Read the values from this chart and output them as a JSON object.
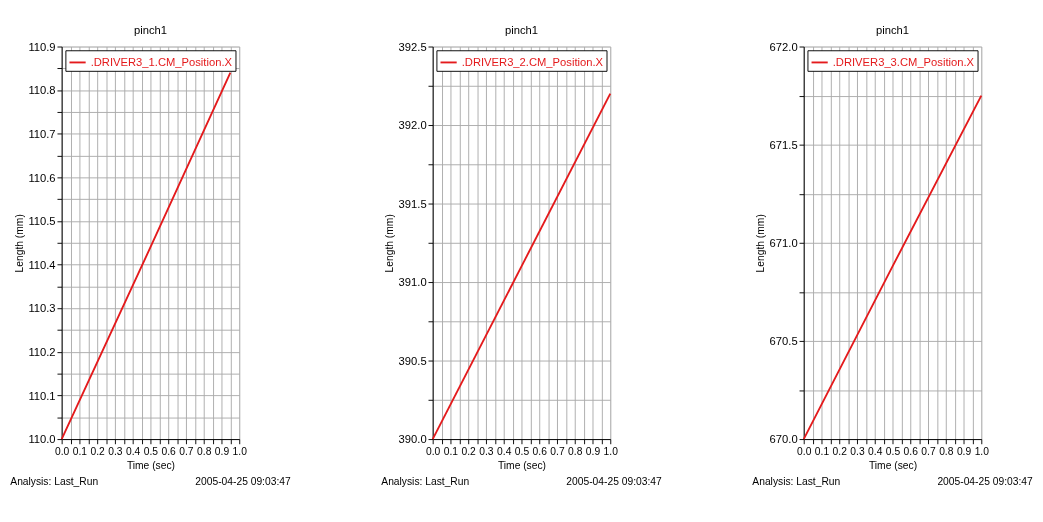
{
  "chart_data": [
    {
      "type": "line",
      "title": "pinch1",
      "xlabel": "Time (sec)",
      "ylabel": "Length (mm)",
      "annotations": [
        "Analysis:  Last_Run",
        "2005-04-25 09:03:47"
      ],
      "series": [
        {
          "name": ".DRIVER3_1.CM_Position.X",
          "color": "#e41a1c",
          "x": [
            0.0,
            0.5,
            0.95
          ],
          "values": [
            110.0,
            110.44,
            110.84
          ]
        }
      ],
      "xlim": [
        0,
        1.0
      ],
      "ylim": [
        110.0,
        110.9
      ],
      "xticks": [
        {
          "value": 0,
          "label": "0.0"
        },
        {
          "value": 0.05,
          "label": null
        },
        {
          "value": 0.1,
          "label": "0.1"
        },
        {
          "value": 0.15,
          "label": null
        },
        {
          "value": 0.2,
          "label": "0.2"
        },
        {
          "value": 0.25,
          "label": null
        },
        {
          "value": 0.3,
          "label": "0.3"
        },
        {
          "value": 0.35,
          "label": null
        },
        {
          "value": 0.4,
          "label": "0.4"
        },
        {
          "value": 0.45,
          "label": null
        },
        {
          "value": 0.5,
          "label": "0.5"
        },
        {
          "value": 0.55,
          "label": null
        },
        {
          "value": 0.6,
          "label": "0.6"
        },
        {
          "value": 0.65,
          "label": null
        },
        {
          "value": 0.7,
          "label": "0.7"
        },
        {
          "value": 0.75,
          "label": null
        },
        {
          "value": 0.8,
          "label": "0.8"
        },
        {
          "value": 0.85,
          "label": null
        },
        {
          "value": 0.9,
          "label": "0.9"
        },
        {
          "value": 0.95,
          "label": null
        },
        {
          "value": 1.0,
          "label": "1.0"
        }
      ],
      "yticks": [
        {
          "value": 110.0,
          "label": "110.0"
        },
        {
          "value": 110.05,
          "label": null
        },
        {
          "value": 110.1,
          "label": "110.1"
        },
        {
          "value": 110.15,
          "label": null
        },
        {
          "value": 110.2,
          "label": "110.2"
        },
        {
          "value": 110.25,
          "label": null
        },
        {
          "value": 110.3,
          "label": "110.3"
        },
        {
          "value": 110.35,
          "label": null
        },
        {
          "value": 110.4,
          "label": "110.4"
        },
        {
          "value": 110.45,
          "label": null
        },
        {
          "value": 110.5,
          "label": "110.5"
        },
        {
          "value": 110.55,
          "label": null
        },
        {
          "value": 110.6,
          "label": "110.6"
        },
        {
          "value": 110.65,
          "label": null
        },
        {
          "value": 110.7,
          "label": "110.7"
        },
        {
          "value": 110.75,
          "label": null
        },
        {
          "value": 110.8,
          "label": "110.8"
        },
        {
          "value": 110.85,
          "label": null
        },
        {
          "value": 110.9,
          "label": "110.9"
        }
      ],
      "grid": true,
      "legend": "top right",
      "marker": "none",
      "line_style": "solid"
    },
    {
      "type": "line",
      "title": "pinch1",
      "xlabel": "Time (sec)",
      "ylabel": "Length (mm)",
      "annotations": [
        "Analysis:  Last_Run",
        "2005-04-25 09:03:47"
      ],
      "series": [
        {
          "name": ".DRIVER3_2.CM_Position.X",
          "color": "#e41a1c",
          "x": [
            0.0,
            0.5,
            1.0
          ],
          "values": [
            390.0,
            391.1,
            392.2
          ]
        }
      ],
      "xlim": [
        0,
        1.0
      ],
      "ylim": [
        390.0,
        392.5
      ],
      "xticks": [
        {
          "value": 0,
          "label": "0.0"
        },
        {
          "value": 0.05,
          "label": null
        },
        {
          "value": 0.1,
          "label": "0.1"
        },
        {
          "value": 0.15,
          "label": null
        },
        {
          "value": 0.2,
          "label": "0.2"
        },
        {
          "value": 0.25,
          "label": null
        },
        {
          "value": 0.3,
          "label": "0.3"
        },
        {
          "value": 0.35,
          "label": null
        },
        {
          "value": 0.4,
          "label": "0.4"
        },
        {
          "value": 0.45,
          "label": null
        },
        {
          "value": 0.5,
          "label": "0.5"
        },
        {
          "value": 0.55,
          "label": null
        },
        {
          "value": 0.6,
          "label": "0.6"
        },
        {
          "value": 0.65,
          "label": null
        },
        {
          "value": 0.7,
          "label": "0.7"
        },
        {
          "value": 0.75,
          "label": null
        },
        {
          "value": 0.8,
          "label": "0.8"
        },
        {
          "value": 0.85,
          "label": null
        },
        {
          "value": 0.9,
          "label": "0.9"
        },
        {
          "value": 0.95,
          "label": null
        },
        {
          "value": 1.0,
          "label": "1.0"
        }
      ],
      "yticks": [
        {
          "value": 390.0,
          "label": "390.0"
        },
        {
          "value": 390.25,
          "label": null
        },
        {
          "value": 390.5,
          "label": "390.5"
        },
        {
          "value": 390.75,
          "label": null
        },
        {
          "value": 391.0,
          "label": "391.0"
        },
        {
          "value": 391.25,
          "label": null
        },
        {
          "value": 391.5,
          "label": "391.5"
        },
        {
          "value": 391.75,
          "label": null
        },
        {
          "value": 392.0,
          "label": "392.0"
        },
        {
          "value": 392.25,
          "label": null
        },
        {
          "value": 392.5,
          "label": "392.5"
        }
      ],
      "grid": true,
      "legend": "top right",
      "marker": "none",
      "line_style": "solid"
    },
    {
      "type": "line",
      "title": "pinch1",
      "xlabel": "Time (sec)",
      "ylabel": "Length (mm)",
      "annotations": [
        "Analysis:  Last_Run",
        "2005-04-25 09:03:47"
      ],
      "series": [
        {
          "name": ".DRIVER3_3.CM_Position.X",
          "color": "#e41a1c",
          "x": [
            0.0,
            0.5,
            1.0
          ],
          "values": [
            670.0,
            670.88,
            671.75
          ]
        }
      ],
      "xlim": [
        0,
        1.0
      ],
      "ylim": [
        670.0,
        672.0
      ],
      "xticks": [
        {
          "value": 0,
          "label": "0.0"
        },
        {
          "value": 0.05,
          "label": null
        },
        {
          "value": 0.1,
          "label": "0.1"
        },
        {
          "value": 0.15,
          "label": null
        },
        {
          "value": 0.2,
          "label": "0.2"
        },
        {
          "value": 0.25,
          "label": null
        },
        {
          "value": 0.3,
          "label": "0.3"
        },
        {
          "value": 0.35,
          "label": null
        },
        {
          "value": 0.4,
          "label": "0.4"
        },
        {
          "value": 0.45,
          "label": null
        },
        {
          "value": 0.5,
          "label": "0.5"
        },
        {
          "value": 0.55,
          "label": null
        },
        {
          "value": 0.6,
          "label": "0.6"
        },
        {
          "value": 0.65,
          "label": null
        },
        {
          "value": 0.7,
          "label": "0.7"
        },
        {
          "value": 0.75,
          "label": null
        },
        {
          "value": 0.8,
          "label": "0.8"
        },
        {
          "value": 0.85,
          "label": null
        },
        {
          "value": 0.9,
          "label": "0.9"
        },
        {
          "value": 0.95,
          "label": null
        },
        {
          "value": 1.0,
          "label": "1.0"
        }
      ],
      "yticks": [
        {
          "value": 670.0,
          "label": "670.0"
        },
        {
          "value": 670.25,
          "label": null
        },
        {
          "value": 670.5,
          "label": "670.5"
        },
        {
          "value": 670.75,
          "label": null
        },
        {
          "value": 671.0,
          "label": "671.0"
        },
        {
          "value": 671.25,
          "label": null
        },
        {
          "value": 671.5,
          "label": "671.5"
        },
        {
          "value": 671.75,
          "label": null
        },
        {
          "value": 672.0,
          "label": "672.0"
        }
      ],
      "grid": true,
      "legend": "top right",
      "marker": "none",
      "line_style": "solid"
    }
  ]
}
